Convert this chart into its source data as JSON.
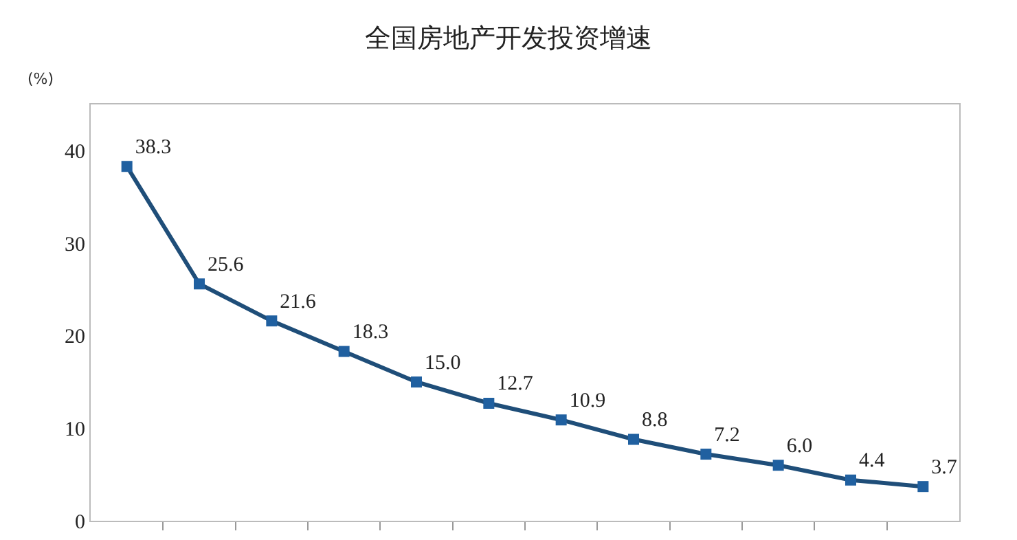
{
  "chart_data": {
    "type": "line",
    "title": "全国房地产开发投资增速",
    "ylabel": "(%)",
    "categories": [
      null,
      null,
      null,
      null,
      null,
      null,
      null,
      null,
      null,
      null,
      null,
      null
    ],
    "series": [
      {
        "color": "#1f4e79",
        "values": [
          38.3,
          25.6,
          21.6,
          18.3,
          15.0,
          12.7,
          10.9,
          8.8,
          7.2,
          6.0,
          4.4,
          3.7
        ]
      }
    ],
    "value_labels": [
      "38.3",
      "25.6",
      "21.6",
      "18.3",
      "15.0",
      "12.7",
      "10.9",
      "8.8",
      "7.2",
      "6.0",
      "4.4",
      "3.7"
    ],
    "ylim": [
      0,
      45
    ],
    "yticks": [
      0,
      10,
      20,
      30,
      40
    ],
    "marker": "square",
    "line_style": "solid",
    "grid": false
  }
}
